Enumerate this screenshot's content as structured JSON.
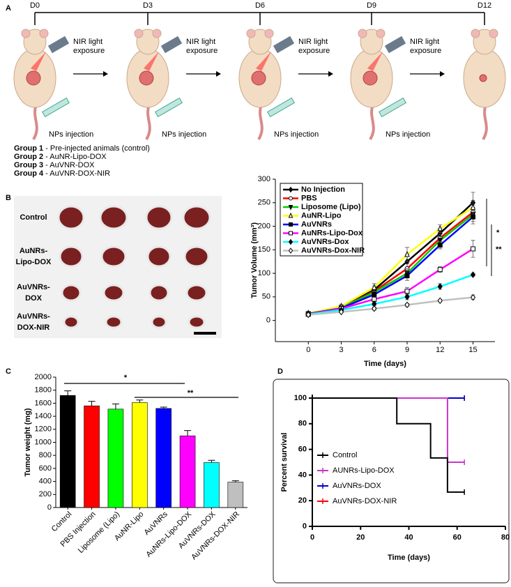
{
  "panel_labels": [
    "A",
    "B",
    "C",
    "D"
  ],
  "panel_a": {
    "timeline": [
      "D0",
      "D3",
      "D6",
      "D9",
      "D12"
    ],
    "light_label": [
      "NIR light",
      "exposure"
    ],
    "injection_label": "NPs injection",
    "groups": [
      {
        "name": "Group 1",
        "text": "- Pre-injected animals (control)"
      },
      {
        "name": "Group 2",
        "text": "- AuNR-Lipo-DOX"
      },
      {
        "name": "Group 3",
        "text": "- AuVNR-DOX"
      },
      {
        "name": "Group 4",
        "text": "- AuVNR-DOX-NIR"
      }
    ]
  },
  "photo": {
    "row_labels": [
      [
        "Control"
      ],
      [
        "AuNRs-",
        "Lipo-DOX"
      ],
      [
        "AuVNRs-",
        "DOX"
      ],
      [
        "AuVNRs-",
        "DOX-NIR"
      ]
    ]
  },
  "chart_data": [
    {
      "type": "line",
      "xlabel": "Time (days)",
      "ylabel": "Tumor Volume (mm³)",
      "x": [
        0,
        3,
        6,
        9,
        12,
        15
      ],
      "xlim": [
        -3,
        17
      ],
      "xticks": [
        0,
        3,
        6,
        9,
        12,
        15
      ],
      "ylim": [
        -45,
        300
      ],
      "yticks": [
        0,
        50,
        100,
        150,
        200,
        250,
        300
      ],
      "legend": "upper left",
      "annotations": [
        "*",
        "**"
      ],
      "series": [
        {
          "name": "No Injection",
          "color": "#000000",
          "marker": "diamond",
          "filled": true,
          "values": [
            15,
            28,
            65,
            125,
            185,
            250
          ],
          "errors": [
            2,
            4,
            8,
            15,
            10,
            22
          ]
        },
        {
          "name": "PBS",
          "color": "#ff0000",
          "marker": "circle",
          "filled": false,
          "values": [
            14,
            27,
            62,
            110,
            175,
            230
          ],
          "errors": [
            2,
            3,
            6,
            10,
            8,
            15
          ]
        },
        {
          "name": "Liposome (Lipo)",
          "color": "#00cc00",
          "marker": "triangle-down",
          "filled": true,
          "values": [
            14,
            27,
            60,
            100,
            170,
            225
          ],
          "errors": [
            2,
            3,
            6,
            10,
            8,
            15
          ]
        },
        {
          "name": "AuNR-Lipo",
          "color": "#ffff00",
          "marker": "triangle-up",
          "filled": false,
          "values": [
            15,
            30,
            70,
            140,
            195,
            240
          ],
          "errors": [
            2,
            4,
            8,
            15,
            8,
            15
          ]
        },
        {
          "name": "AuVNRs",
          "color": "#0000ff",
          "marker": "square",
          "filled": true,
          "values": [
            14,
            26,
            55,
            95,
            160,
            220
          ],
          "errors": [
            2,
            3,
            6,
            10,
            8,
            15
          ]
        },
        {
          "name": "AuNRs-Lipo-Dox",
          "color": "#ff00ff",
          "marker": "square",
          "filled": false,
          "values": [
            13,
            25,
            45,
            62,
            108,
            152
          ],
          "errors": [
            2,
            3,
            5,
            8,
            6,
            18
          ]
        },
        {
          "name": "AuVNRs-Dox",
          "color": "#00ffff",
          "marker": "diamond",
          "filled": true,
          "values": [
            13,
            22,
            35,
            50,
            72,
            97
          ],
          "errors": [
            1,
            3,
            4,
            6,
            6,
            3
          ]
        },
        {
          "name": "AuVNRs-Dox-NIR",
          "color": "#c0c0c0",
          "marker": "diamond",
          "filled": false,
          "values": [
            12,
            18,
            25,
            33,
            42,
            49
          ],
          "errors": [
            1,
            2,
            3,
            3,
            3,
            5
          ]
        }
      ]
    },
    {
      "type": "bar",
      "ylabel": "Tumor weight (mg)",
      "categories": [
        "Control",
        "PBS Injection",
        "Liposome (Lipo)",
        "AuNR-Lipo",
        "AuVNRs",
        "AuNRs-Lipo-DOX",
        "AuVNRs-DOX",
        "AuVNRs-DOX-NIR"
      ],
      "values": [
        1720,
        1560,
        1510,
        1610,
        1520,
        1100,
        690,
        390
      ],
      "errors": [
        70,
        70,
        80,
        40,
        20,
        80,
        35,
        20
      ],
      "colors": [
        "#000000",
        "#ff0000",
        "#00ff00",
        "#ffff00",
        "#0000ff",
        "#ff00ff",
        "#00ffff",
        "#bfbfbf"
      ],
      "ylim": [
        0,
        2000
      ],
      "yticks": [
        0,
        200,
        400,
        600,
        800,
        1000,
        1200,
        1400,
        1600,
        1800,
        2000
      ],
      "annotations": [
        "*",
        "**"
      ]
    },
    {
      "type": "step",
      "xlabel": "Time (days)",
      "ylabel": "Percent survival",
      "xlim": [
        0,
        80
      ],
      "xticks": [
        0,
        20,
        40,
        60,
        80
      ],
      "ylim": [
        0,
        100
      ],
      "yticks": [
        0,
        20,
        40,
        60,
        80,
        100
      ],
      "legend": "lower left",
      "series": [
        {
          "name": "Control",
          "color": "#000000",
          "x": [
            0,
            35,
            49,
            56,
            63
          ],
          "values": [
            100,
            80,
            53.3,
            26.7,
            26.7
          ]
        },
        {
          "name": "AUNRs-Lipo-DOX",
          "color": "#cc33cc",
          "x": [
            0,
            56,
            63
          ],
          "values": [
            100,
            50,
            50
          ]
        },
        {
          "name": "AuVNRs-DOX",
          "color": "#0000cc",
          "x": [
            0,
            63
          ],
          "values": [
            100,
            100
          ]
        },
        {
          "name": "AuVNRs-DOX-NIR",
          "color": "#ff0000",
          "x": [
            0,
            63
          ],
          "values": [
            100,
            100
          ]
        }
      ]
    }
  ]
}
